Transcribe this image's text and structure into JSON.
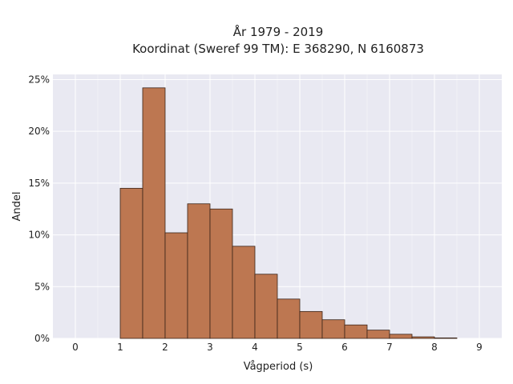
{
  "chart_data": {
    "type": "bar",
    "title": "År 1979 - 2019",
    "subtitle": "Koordinat (Sweref 99 TM): E 368290, N 6160873",
    "xlabel": "Vågperiod (s)",
    "ylabel": "Andel",
    "xlim": [
      -0.5,
      9.5
    ],
    "ylim": [
      0,
      25.5
    ],
    "x_ticks": [
      0,
      1,
      2,
      3,
      4,
      5,
      6,
      7,
      8,
      9
    ],
    "x_tick_labels": [
      "0",
      "1",
      "2",
      "3",
      "4",
      "5",
      "6",
      "7",
      "8",
      "9"
    ],
    "y_ticks": [
      0,
      5,
      10,
      15,
      20,
      25
    ],
    "y_tick_labels": [
      "0%",
      "5%",
      "10%",
      "15%",
      "20%",
      "25%"
    ],
    "grid": true,
    "bin_width": 0.5,
    "bins": [
      {
        "start": 1.0,
        "end": 1.5,
        "value": 14.5
      },
      {
        "start": 1.5,
        "end": 2.0,
        "value": 24.2
      },
      {
        "start": 2.0,
        "end": 2.5,
        "value": 10.2
      },
      {
        "start": 2.5,
        "end": 3.0,
        "value": 13.0
      },
      {
        "start": 3.0,
        "end": 3.5,
        "value": 12.5
      },
      {
        "start": 3.5,
        "end": 4.0,
        "value": 8.9
      },
      {
        "start": 4.0,
        "end": 4.5,
        "value": 6.2
      },
      {
        "start": 4.5,
        "end": 5.0,
        "value": 3.8
      },
      {
        "start": 5.0,
        "end": 5.5,
        "value": 2.6
      },
      {
        "start": 5.5,
        "end": 6.0,
        "value": 1.8
      },
      {
        "start": 6.0,
        "end": 6.5,
        "value": 1.3
      },
      {
        "start": 6.5,
        "end": 7.0,
        "value": 0.8
      },
      {
        "start": 7.0,
        "end": 7.5,
        "value": 0.4
      },
      {
        "start": 7.5,
        "end": 8.0,
        "value": 0.15
      },
      {
        "start": 8.0,
        "end": 8.5,
        "value": 0.05
      }
    ],
    "colors": {
      "bar_fill": "#bd7751",
      "bar_stroke": "#3a2418",
      "plot_background": "#e9e9f2",
      "grid": "#ffffff"
    }
  }
}
